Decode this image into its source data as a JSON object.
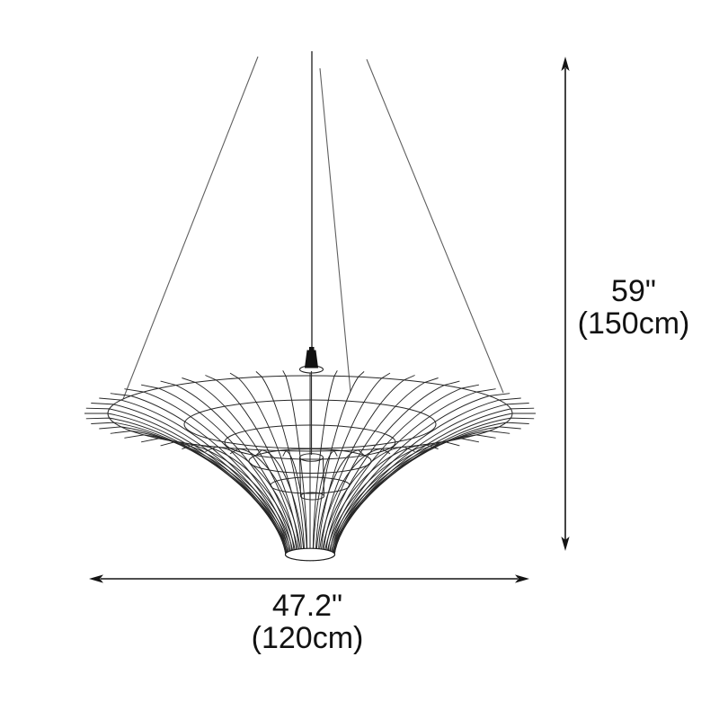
{
  "diagram": {
    "subject": "wireframe-pendant-lamp",
    "dimensions": {
      "height": {
        "inches": "59\"",
        "cm": "(150cm)"
      },
      "width": {
        "inches": "47.2\"",
        "cm": "(120cm)"
      }
    }
  },
  "drawing": {
    "colors": {
      "shade_line": "#262626",
      "cable_line": "#5f5f5f",
      "dimension_line": "#141414",
      "background": "#ffffff"
    },
    "lamp": {
      "rib_count": 52
    }
  }
}
